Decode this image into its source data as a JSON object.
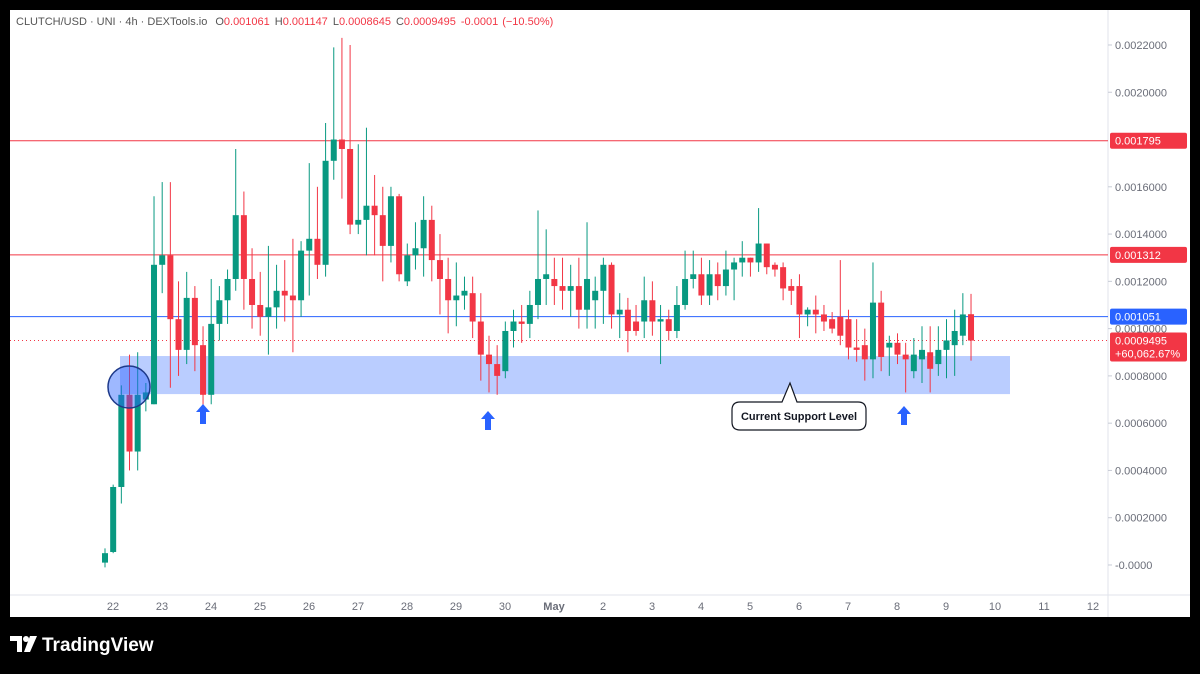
{
  "chart_data": {
    "type": "candlestick",
    "header": {
      "symbol": "CLUTCH/USD · UNI · 4h · DEXTools.io",
      "ohlc": [
        {
          "key": "O",
          "value": "0.001061"
        },
        {
          "key": "H",
          "value": "0.001147"
        },
        {
          "key": "L",
          "value": "0.0008645"
        },
        {
          "key": "C",
          "value": "0.0009495"
        }
      ],
      "change": "-0.0001",
      "change_pct": "(−10.50%)"
    },
    "up_color": "#089981",
    "down_color": "#f23645",
    "open": [
      1e-05,
      5.5e-05,
      0.00033,
      0.00072,
      0.00048,
      0.0007,
      0.00068,
      0.00127,
      0.00131,
      0.00104,
      0.00091,
      0.00113,
      0.00093,
      0.00072,
      0.00102,
      0.00112,
      0.00121,
      0.00148,
      0.00121,
      0.0011,
      0.00105,
      0.00109,
      0.00116,
      0.00114,
      0.00112,
      0.00133,
      0.00138,
      0.00127,
      0.00171,
      0.0018,
      0.00176,
      0.00144,
      0.00146,
      0.00152,
      0.00148,
      0.00135,
      0.00156,
      0.0012,
      0.00131,
      0.00134,
      0.00146,
      0.00129,
      0.00121,
      0.00112,
      0.00114,
      0.00115,
      0.00103,
      0.00089,
      0.00085,
      0.00082,
      0.00099,
      0.00103,
      0.00102,
      0.0011,
      0.00121,
      0.00121,
      0.00118,
      0.00116,
      0.00118,
      0.00108,
      0.00112,
      0.00116,
      0.00127,
      0.00106,
      0.00108,
      0.00103,
      0.00103,
      0.00112,
      0.00103,
      0.00104,
      0.00099,
      0.0011,
      0.00121,
      0.00123,
      0.00114,
      0.00123,
      0.00118,
      0.00125,
      0.00128,
      0.0013,
      0.00128,
      0.00136,
      0.00127,
      0.00126,
      0.00118,
      0.00118,
      0.00106,
      0.00108,
      0.00106,
      0.00104,
      0.00105,
      0.00104,
      0.00092,
      0.00093,
      0.00087,
      0.00111,
      0.00092,
      0.00094,
      0.00089,
      0.00082,
      0.00087,
      0.0009,
      0.00085,
      0.00091,
      0.00093,
      0.00097,
      0.001061
    ],
    "high": [
      7e-05,
      0.00034,
      0.00076,
      0.00089,
      0.0009,
      0.00077,
      0.00156,
      0.00162,
      0.00162,
      0.0012,
      0.00124,
      0.00118,
      0.00101,
      0.00121,
      0.00118,
      0.00125,
      0.00176,
      0.00158,
      0.00134,
      0.00124,
      0.00135,
      0.00127,
      0.00129,
      0.00138,
      0.00137,
      0.0017,
      0.0016,
      0.00187,
      0.00219,
      0.00223,
      0.0022,
      0.00178,
      0.00185,
      0.00165,
      0.0016,
      0.0016,
      0.00157,
      0.00136,
      0.00145,
      0.00156,
      0.00152,
      0.0014,
      0.0013,
      0.00128,
      0.00122,
      0.00122,
      0.00115,
      0.00097,
      0.00093,
      0.00103,
      0.00108,
      0.0011,
      0.00116,
      0.0015,
      0.00142,
      0.0013,
      0.0013,
      0.00127,
      0.0013,
      0.00145,
      0.00122,
      0.0013,
      0.00128,
      0.00115,
      0.00113,
      0.0011,
      0.00122,
      0.0012,
      0.0011,
      0.00108,
      0.00118,
      0.00133,
      0.00133,
      0.0013,
      0.00129,
      0.00128,
      0.00133,
      0.0013,
      0.00137,
      0.0013,
      0.00151,
      0.00136,
      0.00128,
      0.00128,
      0.00121,
      0.00123,
      0.00109,
      0.00114,
      0.0011,
      0.00107,
      0.00129,
      0.00108,
      0.00104,
      0.001,
      0.00128,
      0.00116,
      0.00097,
      0.00098,
      0.00094,
      0.00096,
      0.00101,
      0.00101,
      0.00101,
      0.00104,
      0.00108,
      0.00115,
      0.001147
    ],
    "low": [
      -1e-05,
      5e-05,
      0.00026,
      0.0004,
      0.0004,
      0.00065,
      0.00068,
      0.00115,
      0.00075,
      0.0008,
      0.00085,
      0.00082,
      0.00065,
      0.00068,
      0.00095,
      0.00102,
      0.00116,
      0.00108,
      0.001,
      0.00097,
      0.00089,
      0.001,
      0.00103,
      0.0009,
      0.00105,
      0.00114,
      0.00121,
      0.00122,
      0.00163,
      0.00155,
      0.0014,
      0.0014,
      0.00131,
      0.00131,
      0.0012,
      0.00128,
      0.0012,
      0.00118,
      0.00125,
      0.00122,
      0.0012,
      0.00106,
      0.00098,
      0.00101,
      0.00108,
      0.00096,
      0.00078,
      0.00073,
      0.00072,
      0.00079,
      0.00092,
      0.00094,
      0.00096,
      0.00104,
      0.0011,
      0.0011,
      0.00108,
      0.00105,
      0.001,
      0.001,
      0.001,
      0.00102,
      0.001,
      0.00096,
      0.0009,
      0.00097,
      0.00096,
      0.00097,
      0.00085,
      0.00095,
      0.00096,
      0.00108,
      0.00117,
      0.0011,
      0.0011,
      0.00112,
      0.00114,
      0.00112,
      0.00122,
      0.00122,
      0.00124,
      0.00123,
      0.00122,
      0.00112,
      0.0011,
      0.00096,
      0.00101,
      0.00098,
      0.00099,
      0.00098,
      0.00093,
      0.00087,
      0.00086,
      0.00078,
      0.00079,
      0.00082,
      0.0008,
      0.00085,
      0.00073,
      0.00079,
      0.00077,
      0.00073,
      0.0008,
      0.00079,
      0.0008,
      0.00093,
      0.0008645
    ],
    "close": [
      5e-05,
      0.00033,
      0.00072,
      0.00048,
      0.00072,
      0.00073,
      0.00127,
      0.00131,
      0.00104,
      0.00091,
      0.00113,
      0.00093,
      0.00072,
      0.00102,
      0.00112,
      0.00121,
      0.00148,
      0.00121,
      0.0011,
      0.00105,
      0.00109,
      0.00116,
      0.00114,
      0.00112,
      0.00133,
      0.00138,
      0.00127,
      0.00171,
      0.0018,
      0.00176,
      0.00144,
      0.00146,
      0.00152,
      0.00148,
      0.00135,
      0.00156,
      0.00123,
      0.00131,
      0.00134,
      0.00146,
      0.00129,
      0.00121,
      0.00112,
      0.00114,
      0.00116,
      0.00103,
      0.00089,
      0.00085,
      0.0008,
      0.00099,
      0.00103,
      0.00102,
      0.0011,
      0.00121,
      0.00123,
      0.00118,
      0.00116,
      0.00118,
      0.00108,
      0.00121,
      0.00116,
      0.00127,
      0.00106,
      0.00108,
      0.00099,
      0.00099,
      0.00112,
      0.00103,
      0.00104,
      0.00099,
      0.0011,
      0.00121,
      0.00123,
      0.00114,
      0.00123,
      0.00118,
      0.00125,
      0.00128,
      0.0013,
      0.00128,
      0.00136,
      0.00126,
      0.00125,
      0.00117,
      0.00116,
      0.00106,
      0.00108,
      0.00106,
      0.00103,
      0.001,
      0.00097,
      0.00092,
      0.00091,
      0.00087,
      0.00111,
      0.00088,
      0.00094,
      0.00089,
      0.00087,
      0.00089,
      0.00091,
      0.00083,
      0.00091,
      0.00095,
      0.00099,
      0.00106,
      0.0009495
    ],
    "ylim": [
      -0.000127,
      0.002348
    ],
    "yticks": [
      {
        "value": 0,
        "label": "-0.0000"
      },
      {
        "value": 0.0002,
        "label": "0.0002000"
      },
      {
        "value": 0.0004,
        "label": "0.0004000"
      },
      {
        "value": 0.0006,
        "label": "0.0006000"
      },
      {
        "value": 0.0008,
        "label": "0.0008000"
      },
      {
        "value": 0.001,
        "label": "0.0010000"
      },
      {
        "value": 0.0012,
        "label": "0.0012000"
      },
      {
        "value": 0.0014,
        "label": "0.0014000"
      },
      {
        "value": 0.0016,
        "label": "0.0016000"
      },
      {
        "value": 0.002,
        "label": "0.0020000"
      },
      {
        "value": 0.0022,
        "label": "0.0022000"
      }
    ],
    "x_labels": [
      "22",
      "23",
      "24",
      "25",
      "26",
      "27",
      "28",
      "29",
      "30",
      "May",
      "2",
      "3",
      "4",
      "5",
      "6",
      "7",
      "8",
      "9",
      "10",
      "11",
      "12"
    ],
    "levels": [
      {
        "value": 0.001795,
        "color": "#f23645"
      },
      {
        "value": 0.001312,
        "color": "#f23645"
      },
      {
        "value": 0.001051,
        "color": "#2962ff"
      }
    ],
    "last_price": {
      "value": 0.0009495,
      "change_label": "+60,062.67%"
    },
    "support_zone": {
      "from": 0.000723,
      "to": 0.000884,
      "label": "Current Support Level"
    },
    "footer": "TradingView"
  }
}
